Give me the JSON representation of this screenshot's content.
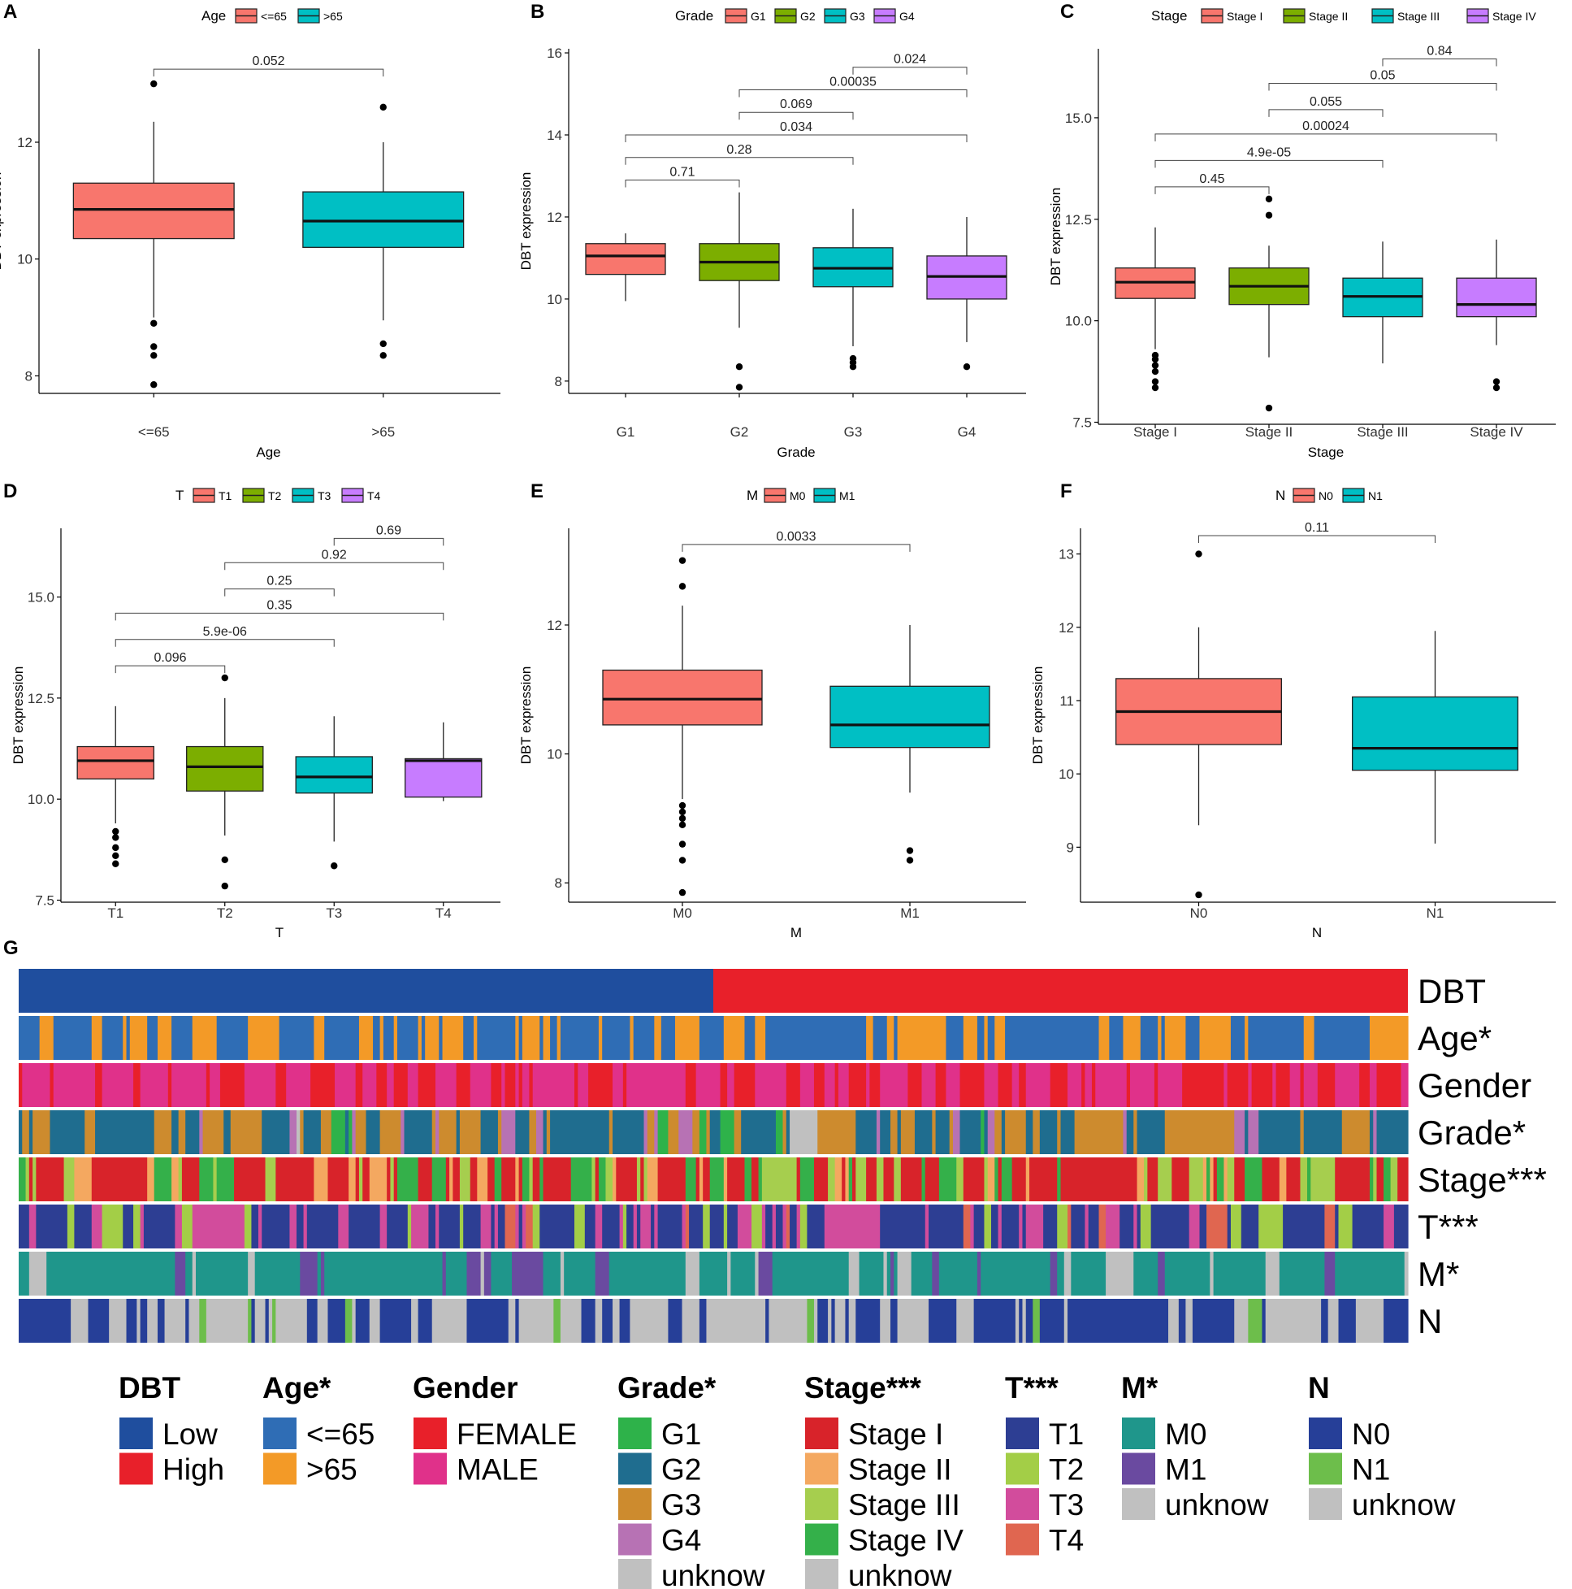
{
  "figure": {
    "heatmap_section_letter": "G"
  },
  "colors": {
    "Age": [
      "#F8766D",
      "#00BFC4"
    ],
    "Grade": [
      "#F8766D",
      "#7CAE00",
      "#00BFC4",
      "#C77CFF"
    ],
    "Stage": [
      "#F8766D",
      "#7CAE00",
      "#00BFC4",
      "#C77CFF"
    ],
    "T": [
      "#F8766D",
      "#7CAE00",
      "#00BFC4",
      "#C77CFF"
    ],
    "M": [
      "#F8766D",
      "#00BFC4"
    ],
    "N": [
      "#F8766D",
      "#00BFC4"
    ]
  },
  "chart_data": [
    {
      "type": "box",
      "panel": "A",
      "ylabel": "DBT expression",
      "xlabel": "Age",
      "legend_title": "Age",
      "categories": [
        "<=65",
        ">65"
      ],
      "ylim": [
        7.7,
        13.6
      ],
      "yticks": [
        8,
        10,
        12
      ],
      "ytick_labels": [
        "8",
        "10",
        "12"
      ],
      "boxes": [
        {
          "whisker_low": 9.0,
          "q1": 10.35,
          "median": 10.85,
          "q3": 11.3,
          "whisker_high": 12.35,
          "outliers": [
            7.85,
            8.35,
            8.5,
            8.9,
            13.0
          ]
        },
        {
          "whisker_low": 8.95,
          "q1": 10.2,
          "median": 10.65,
          "q3": 11.15,
          "whisker_high": 12.0,
          "outliers": [
            8.35,
            8.55,
            12.6
          ]
        }
      ],
      "comparisons": [
        {
          "from": "<=65",
          "to": ">65",
          "p": "0.052",
          "level": 13.25
        }
      ]
    },
    {
      "type": "box",
      "panel": "B",
      "ylabel": "DBT expression",
      "xlabel": "Grade",
      "legend_title": "Grade",
      "categories": [
        "G1",
        "G2",
        "G3",
        "G4"
      ],
      "ylim": [
        7.7,
        16.1
      ],
      "yticks": [
        8,
        10,
        12,
        14,
        16
      ],
      "ytick_labels": [
        "8",
        "10",
        "12",
        "14",
        "16"
      ],
      "boxes": [
        {
          "whisker_low": 9.95,
          "q1": 10.6,
          "median": 11.05,
          "q3": 11.35,
          "whisker_high": 11.6,
          "outliers": []
        },
        {
          "whisker_low": 9.3,
          "q1": 10.45,
          "median": 10.9,
          "q3": 11.35,
          "whisker_high": 12.6,
          "outliers": [
            7.85,
            8.35
          ]
        },
        {
          "whisker_low": 8.85,
          "q1": 10.3,
          "median": 10.75,
          "q3": 11.25,
          "whisker_high": 12.2,
          "outliers": [
            8.35,
            8.45,
            8.55
          ]
        },
        {
          "whisker_low": 8.95,
          "q1": 10.0,
          "median": 10.55,
          "q3": 11.05,
          "whisker_high": 12.0,
          "outliers": [
            8.35
          ]
        }
      ],
      "comparisons": [
        {
          "from": "G1",
          "to": "G2",
          "p": "0.71",
          "level": 12.9
        },
        {
          "from": "G1",
          "to": "G3",
          "p": "0.28",
          "level": 13.45
        },
        {
          "from": "G1",
          "to": "G4",
          "p": "0.034",
          "level": 14.0
        },
        {
          "from": "G2",
          "to": "G3",
          "p": "0.069",
          "level": 14.55
        },
        {
          "from": "G2",
          "to": "G4",
          "p": "0.00035",
          "level": 15.1
        },
        {
          "from": "G3",
          "to": "G4",
          "p": "0.024",
          "level": 15.65
        }
      ]
    },
    {
      "type": "box",
      "panel": "C",
      "ylabel": "DBT expression",
      "xlabel": "Stage",
      "legend_title": "Stage",
      "categories": [
        "Stage I",
        "Stage II",
        "Stage III",
        "Stage IV"
      ],
      "ylim": [
        7.45,
        16.7
      ],
      "yticks": [
        7.5,
        10.0,
        12.5,
        15.0
      ],
      "ytick_labels": [
        "7.5",
        "10.0",
        "12.5",
        "15.0"
      ],
      "boxes": [
        {
          "whisker_low": 9.3,
          "q1": 10.55,
          "median": 10.95,
          "q3": 11.3,
          "whisker_high": 12.3,
          "outliers": [
            8.35,
            8.5,
            8.75,
            8.9,
            9.05,
            9.15
          ]
        },
        {
          "whisker_low": 9.1,
          "q1": 10.4,
          "median": 10.85,
          "q3": 11.3,
          "whisker_high": 11.85,
          "outliers": [
            7.85,
            12.6,
            13.0
          ]
        },
        {
          "whisker_low": 8.95,
          "q1": 10.1,
          "median": 10.6,
          "q3": 11.05,
          "whisker_high": 11.95,
          "outliers": []
        },
        {
          "whisker_low": 9.4,
          "q1": 10.1,
          "median": 10.4,
          "q3": 11.05,
          "whisker_high": 12.0,
          "outliers": [
            8.35,
            8.5
          ]
        }
      ],
      "comparisons": [
        {
          "from": "Stage I",
          "to": "Stage II",
          "p": "0.45",
          "level": 13.3
        },
        {
          "from": "Stage I",
          "to": "Stage III",
          "p": "4.9e-05",
          "level": 13.95
        },
        {
          "from": "Stage I",
          "to": "Stage IV",
          "p": "0.00024",
          "level": 14.6
        },
        {
          "from": "Stage II",
          "to": "Stage III",
          "p": "0.055",
          "level": 15.2
        },
        {
          "from": "Stage II",
          "to": "Stage IV",
          "p": "0.05",
          "level": 15.85
        },
        {
          "from": "Stage III",
          "to": "Stage IV",
          "p": "0.84",
          "level": 16.45
        }
      ]
    },
    {
      "type": "box",
      "panel": "D",
      "ylabel": "DBT expression",
      "xlabel": "T",
      "legend_title": "T",
      "categories": [
        "T1",
        "T2",
        "T3",
        "T4"
      ],
      "ylim": [
        7.45,
        16.7
      ],
      "yticks": [
        7.5,
        10.0,
        12.5,
        15.0
      ],
      "ytick_labels": [
        "7.5",
        "10.0",
        "12.5",
        "15.0"
      ],
      "boxes": [
        {
          "whisker_low": 9.4,
          "q1": 10.5,
          "median": 10.95,
          "q3": 11.3,
          "whisker_high": 12.3,
          "outliers": [
            8.4,
            8.6,
            8.8,
            9.05,
            9.2
          ]
        },
        {
          "whisker_low": 9.1,
          "q1": 10.2,
          "median": 10.8,
          "q3": 11.3,
          "whisker_high": 12.5,
          "outliers": [
            7.85,
            8.5,
            13.0
          ]
        },
        {
          "whisker_low": 8.95,
          "q1": 10.15,
          "median": 10.55,
          "q3": 11.05,
          "whisker_high": 12.05,
          "outliers": [
            8.35
          ]
        },
        {
          "whisker_low": 9.95,
          "q1": 10.05,
          "median": 10.95,
          "q3": 11.0,
          "whisker_high": 11.9,
          "outliers": []
        }
      ],
      "comparisons": [
        {
          "from": "T1",
          "to": "T2",
          "p": "0.096",
          "level": 13.3
        },
        {
          "from": "T1",
          "to": "T3",
          "p": "5.9e-06",
          "level": 13.95
        },
        {
          "from": "T1",
          "to": "T4",
          "p": "0.35",
          "level": 14.6
        },
        {
          "from": "T2",
          "to": "T3",
          "p": "0.25",
          "level": 15.2
        },
        {
          "from": "T2",
          "to": "T4",
          "p": "0.92",
          "level": 15.85
        },
        {
          "from": "T3",
          "to": "T4",
          "p": "0.69",
          "level": 16.45
        }
      ]
    },
    {
      "type": "box",
      "panel": "E",
      "ylabel": "DBT expression",
      "xlabel": "M",
      "legend_title": "M",
      "categories": [
        "M0",
        "M1"
      ],
      "ylim": [
        7.7,
        13.5
      ],
      "yticks": [
        8,
        10,
        12
      ],
      "ytick_labels": [
        "8",
        "10",
        "12"
      ],
      "boxes": [
        {
          "whisker_low": 9.3,
          "q1": 10.45,
          "median": 10.85,
          "q3": 11.3,
          "whisker_high": 12.3,
          "outliers": [
            7.85,
            8.35,
            8.6,
            8.9,
            9.0,
            9.1,
            9.2,
            12.6,
            13.0
          ]
        },
        {
          "whisker_low": 9.4,
          "q1": 10.1,
          "median": 10.45,
          "q3": 11.05,
          "whisker_high": 12.0,
          "outliers": [
            8.35,
            8.5
          ]
        }
      ],
      "comparisons": [
        {
          "from": "M0",
          "to": "M1",
          "p": "0.0033",
          "level": 13.25
        }
      ]
    },
    {
      "type": "box",
      "panel": "F",
      "ylabel": "DBT expression",
      "xlabel": "N",
      "legend_title": "N",
      "categories": [
        "N0",
        "N1"
      ],
      "ylim": [
        8.25,
        13.35
      ],
      "yticks": [
        9,
        10,
        11,
        12,
        13
      ],
      "ytick_labels": [
        "9",
        "10",
        "11",
        "12",
        "13"
      ],
      "boxes": [
        {
          "whisker_low": 9.3,
          "q1": 10.4,
          "median": 10.85,
          "q3": 11.3,
          "whisker_high": 12.0,
          "outliers": [
            8.35,
            13.0
          ]
        },
        {
          "whisker_low": 9.05,
          "q1": 10.05,
          "median": 10.35,
          "q3": 11.05,
          "whisker_high": 11.95,
          "outliers": []
        }
      ],
      "comparisons": [
        {
          "from": "N0",
          "to": "N1",
          "p": "0.11",
          "level": 13.25
        }
      ]
    },
    {
      "type": "heatmap",
      "panel": "G",
      "tracks": [
        {
          "key": "dbt",
          "label": "DBT"
        },
        {
          "key": "age",
          "label": "Age*"
        },
        {
          "key": "gender",
          "label": "Gender"
        },
        {
          "key": "grade",
          "label": "Grade*"
        },
        {
          "key": "stage",
          "label": "Stage***"
        },
        {
          "key": "t",
          "label": "T***"
        },
        {
          "key": "m",
          "label": "M*"
        },
        {
          "key": "n",
          "label": "N"
        }
      ],
      "sample_count": 400,
      "low_high_split": 0.5,
      "legend": [
        {
          "key": "dbt",
          "title": "DBT",
          "items": [
            {
              "label": "Low",
              "color": "#1F4E9E"
            },
            {
              "label": "High",
              "color": "#E8202A"
            }
          ]
        },
        {
          "key": "age",
          "title": "Age*",
          "items": [
            {
              "label": "<=65",
              "color": "#2F6DB5"
            },
            {
              "label": ">65",
              "color": "#F39A27"
            }
          ]
        },
        {
          "key": "gender",
          "title": "Gender",
          "items": [
            {
              "label": "FEMALE",
              "color": "#E8202A"
            },
            {
              "label": "MALE",
              "color": "#E0318A"
            }
          ]
        },
        {
          "key": "grade",
          "title": "Grade*",
          "items": [
            {
              "label": "G1",
              "color": "#2EB24A"
            },
            {
              "label": "G2",
              "color": "#1F6D8F"
            },
            {
              "label": "G3",
              "color": "#CD8B2E"
            },
            {
              "label": "G4",
              "color": "#B772B4"
            },
            {
              "label": "unknow",
              "color": "#C0C0C0"
            }
          ]
        },
        {
          "key": "stage",
          "title": "Stage***",
          "items": [
            {
              "label": "Stage I",
              "color": "#D8232A"
            },
            {
              "label": "Stage II",
              "color": "#F4A860"
            },
            {
              "label": "Stage III",
              "color": "#A6CE4E"
            },
            {
              "label": "Stage IV",
              "color": "#34B04A"
            },
            {
              "label": "unknow",
              "color": "#C0C0C0"
            }
          ]
        },
        {
          "key": "t",
          "title": "T***",
          "items": [
            {
              "label": "T1",
              "color": "#2D3E93"
            },
            {
              "label": "T2",
              "color": "#A3CE47"
            },
            {
              "label": "T3",
              "color": "#D24C9C"
            },
            {
              "label": "T4",
              "color": "#E06650"
            }
          ]
        },
        {
          "key": "m",
          "title": "M*",
          "items": [
            {
              "label": "M0",
              "color": "#1F968B"
            },
            {
              "label": "M1",
              "color": "#6A4AA0"
            },
            {
              "label": "unknow",
              "color": "#C0C0C0"
            }
          ]
        },
        {
          "key": "n",
          "title": "N",
          "items": [
            {
              "label": "N0",
              "color": "#263F98"
            },
            {
              "label": "N1",
              "color": "#6DBE4B"
            },
            {
              "label": "unknow",
              "color": "#C0C0C0"
            }
          ]
        }
      ]
    }
  ]
}
